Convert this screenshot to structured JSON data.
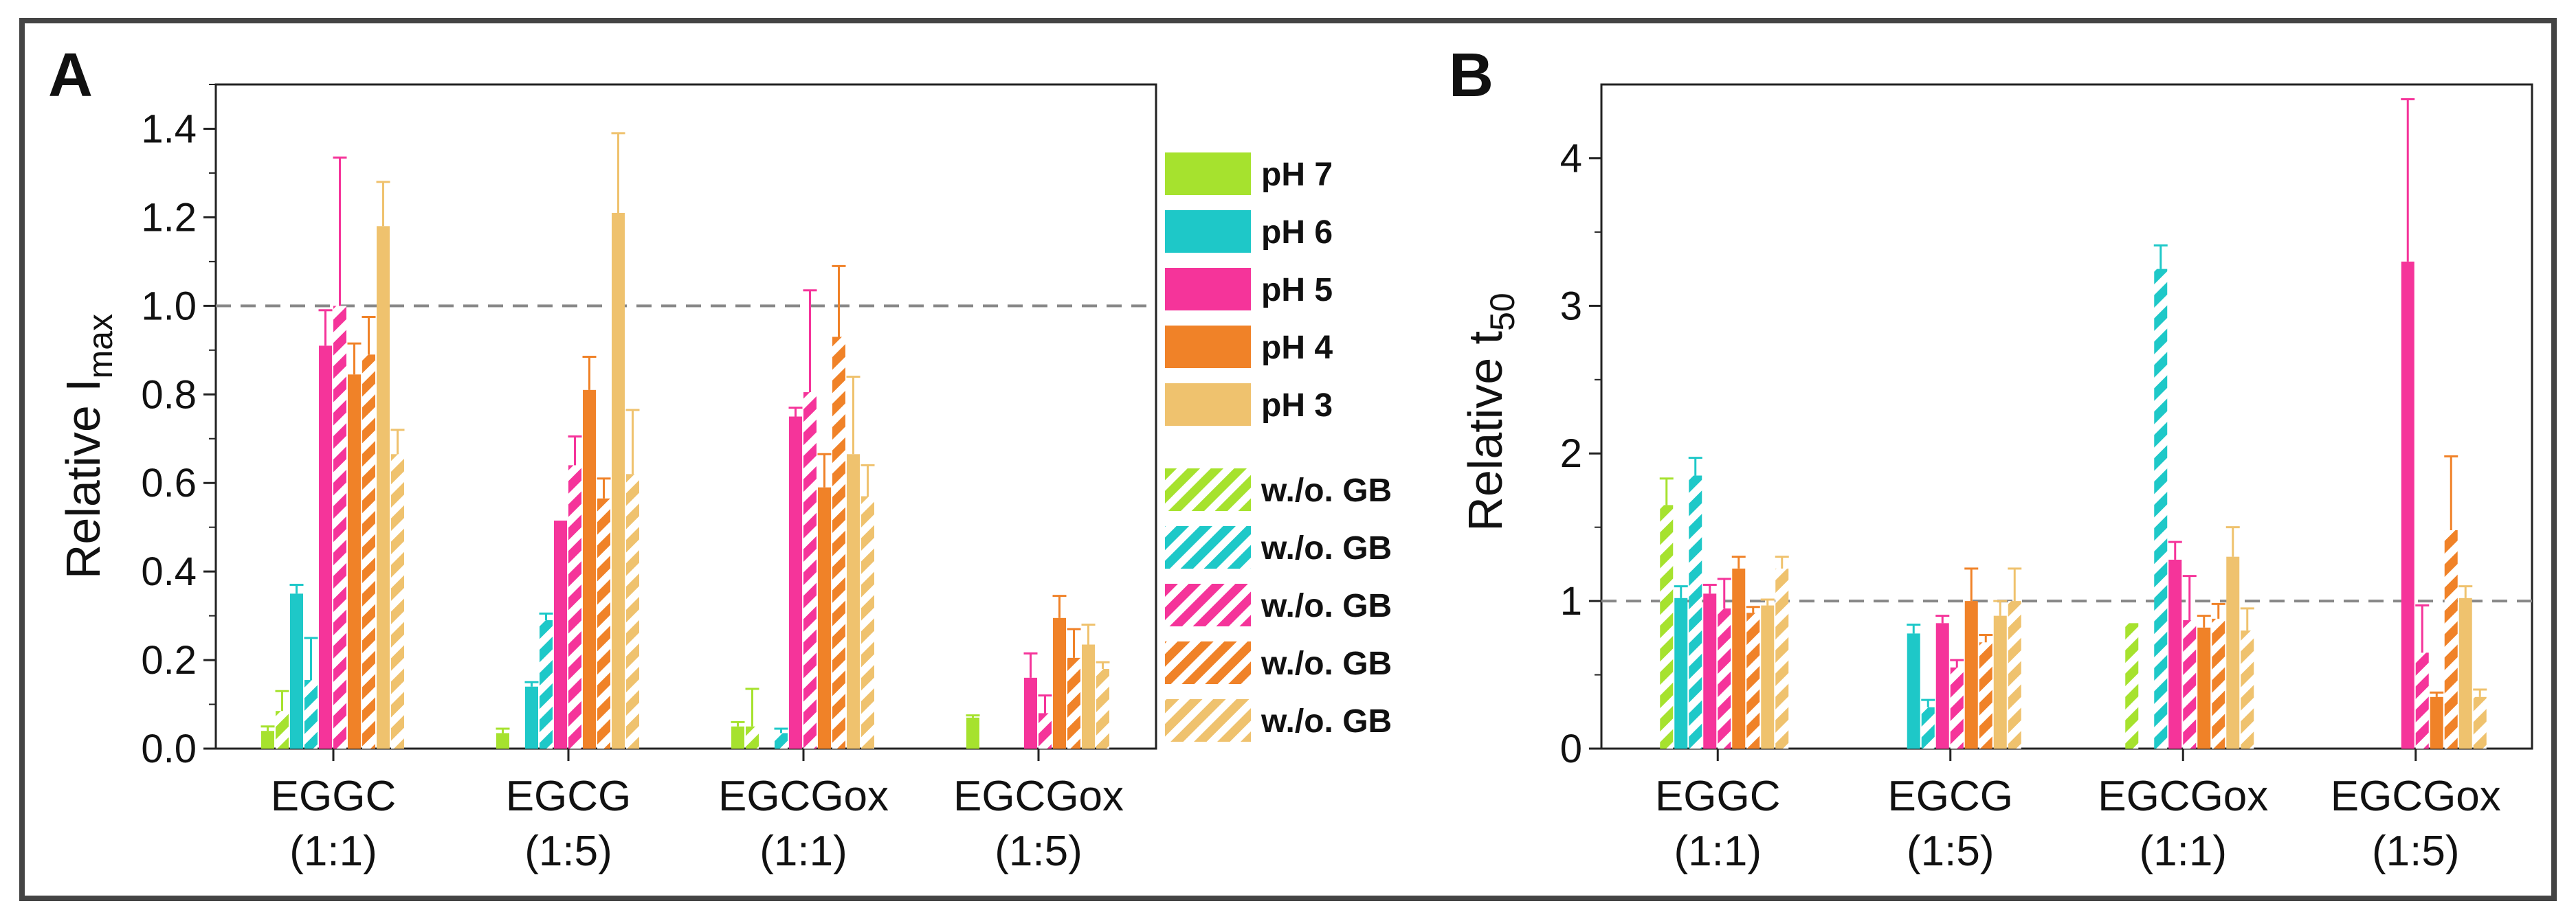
{
  "series_meta": [
    {
      "key": "pH7",
      "label": "pH 7",
      "color": "#a6e22e"
    },
    {
      "key": "pH6",
      "label": "pH 6",
      "color": "#1ec8c8"
    },
    {
      "key": "pH5",
      "label": "pH 5",
      "color": "#f5349a"
    },
    {
      "key": "pH4",
      "label": "pH 4",
      "color": "#f08228"
    },
    {
      "key": "pH3",
      "label": "pH 3",
      "color": "#efc26e"
    }
  ],
  "legend": {
    "solid_labels": [
      "pH 7",
      "pH 6",
      "pH 5",
      "pH 4",
      "pH 3"
    ],
    "hatched_labels": [
      "w./o. GB",
      "w./o. GB",
      "w./o. GB",
      "w./o. GB",
      "w./o. GB"
    ]
  },
  "chart_data": [
    {
      "panel": "A",
      "type": "bar",
      "ylabel": "Relative I",
      "ylabel_sub": "max",
      "ylim": [
        0,
        1.5
      ],
      "yticks": [
        "0.0",
        "0.2",
        "0.4",
        "0.6",
        "0.8",
        "1.0",
        "1.2",
        "1.4"
      ],
      "reference_line": 1.0,
      "categories": [
        {
          "name": "EGGC",
          "ratio": "(1:1)"
        },
        {
          "name": "EGCG",
          "ratio": "(1:5)"
        },
        {
          "name": "EGCGox",
          "ratio": "(1:1)"
        },
        {
          "name": "EGCGox",
          "ratio": "(1:5)"
        }
      ],
      "series": [
        {
          "name": "pH 7",
          "values": [
            0.04,
            0.035,
            0.05,
            0.07
          ],
          "errors": [
            0.01,
            0.01,
            0.01,
            0.005
          ]
        },
        {
          "name": "pH 7 w./o. GB",
          "values": [
            0.085,
            0.0,
            0.05,
            0.0
          ],
          "errors": [
            0.045,
            0.0,
            0.085,
            0.0
          ]
        },
        {
          "name": "pH 6",
          "values": [
            0.35,
            0.14,
            0.0,
            0.0
          ],
          "errors": [
            0.02,
            0.01,
            0.0,
            0.0
          ]
        },
        {
          "name": "pH 6 w./o. GB",
          "values": [
            0.155,
            0.29,
            0.035,
            0.0
          ],
          "errors": [
            0.095,
            0.015,
            0.01,
            0.0
          ]
        },
        {
          "name": "pH 5",
          "values": [
            0.91,
            0.515,
            0.75,
            0.16
          ],
          "errors": [
            0.08,
            0.0,
            0.02,
            0.055
          ]
        },
        {
          "name": "pH 5 w./o. GB",
          "values": [
            1.0,
            0.64,
            0.805,
            0.08
          ],
          "errors": [
            0.335,
            0.065,
            0.23,
            0.04
          ]
        },
        {
          "name": "pH 4",
          "values": [
            0.845,
            0.81,
            0.59,
            0.295
          ],
          "errors": [
            0.07,
            0.075,
            0.075,
            0.05
          ]
        },
        {
          "name": "pH 4 w./o. GB",
          "values": [
            0.89,
            0.565,
            0.93,
            0.205
          ],
          "errors": [
            0.085,
            0.045,
            0.16,
            0.065
          ]
        },
        {
          "name": "pH 3",
          "values": [
            1.18,
            1.21,
            0.665,
            0.235
          ],
          "errors": [
            0.1,
            0.18,
            0.175,
            0.045
          ]
        },
        {
          "name": "pH 3 w./o. GB",
          "values": [
            0.665,
            0.62,
            0.57,
            0.18
          ],
          "errors": [
            0.055,
            0.145,
            0.07,
            0.015
          ]
        }
      ]
    },
    {
      "panel": "B",
      "type": "bar",
      "ylabel": "Relative t",
      "ylabel_sub": "50",
      "ylim": [
        0,
        4.5
      ],
      "yticks": [
        "0",
        "1",
        "2",
        "3",
        "4"
      ],
      "reference_line": 1.0,
      "categories": [
        {
          "name": "EGGC",
          "ratio": "(1:1)"
        },
        {
          "name": "EGCG",
          "ratio": "(1:5)"
        },
        {
          "name": "EGCGox",
          "ratio": "(1:1)"
        },
        {
          "name": "EGCGox",
          "ratio": "(1:5)"
        }
      ],
      "series": [
        {
          "name": "pH 7",
          "values": [
            0.0,
            0.0,
            0.0,
            0.0
          ],
          "errors": [
            0.0,
            0.0,
            0.0,
            0.0
          ]
        },
        {
          "name": "pH 7 w./o. GB",
          "values": [
            1.65,
            0.0,
            0.85,
            0.0
          ],
          "errors": [
            0.18,
            0.0,
            0.0,
            0.0
          ]
        },
        {
          "name": "pH 6",
          "values": [
            1.02,
            0.78,
            0.0,
            0.0
          ],
          "errors": [
            0.08,
            0.06,
            0.0,
            0.0
          ]
        },
        {
          "name": "pH 6 w./o. GB",
          "values": [
            1.85,
            0.28,
            3.25,
            0.0
          ],
          "errors": [
            0.12,
            0.05,
            0.16,
            0.0
          ]
        },
        {
          "name": "pH 5",
          "values": [
            1.05,
            0.85,
            1.28,
            3.3
          ],
          "errors": [
            0.06,
            0.05,
            0.12,
            1.1
          ]
        },
        {
          "name": "pH 5 w./o. GB",
          "values": [
            0.95,
            0.55,
            0.87,
            0.65
          ],
          "errors": [
            0.2,
            0.05,
            0.3,
            0.32
          ]
        },
        {
          "name": "pH 4",
          "values": [
            1.22,
            1.0,
            0.82,
            0.35
          ],
          "errors": [
            0.08,
            0.22,
            0.08,
            0.03
          ]
        },
        {
          "name": "pH 4 w./o. GB",
          "values": [
            0.92,
            0.72,
            0.88,
            1.48
          ],
          "errors": [
            0.04,
            0.05,
            0.1,
            0.5
          ]
        },
        {
          "name": "pH 3",
          "values": [
            0.97,
            0.9,
            1.3,
            1.02
          ],
          "errors": [
            0.04,
            0.1,
            0.2,
            0.08
          ]
        },
        {
          "name": "pH 3 w./o. GB",
          "values": [
            1.22,
            1.0,
            0.8,
            0.35
          ],
          "errors": [
            0.08,
            0.22,
            0.15,
            0.05
          ]
        }
      ]
    }
  ]
}
